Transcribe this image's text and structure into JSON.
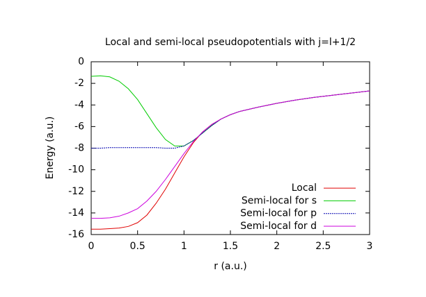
{
  "chart_data": {
    "type": "line",
    "title": "Local and semi-local pseudopotentials with j=l+1/2",
    "x_label": "r (a.u.)",
    "y_label": "Energy (a.u.)",
    "x": [
      0,
      0.1,
      0.2,
      0.3,
      0.4,
      0.5,
      0.6,
      0.7,
      0.8,
      0.9,
      1.0,
      1.1,
      1.2,
      1.3,
      1.4,
      1.5,
      1.6,
      1.8,
      2.0,
      2.2,
      2.4,
      2.6,
      2.8,
      3.0
    ],
    "series": [
      {
        "name": "Local",
        "color": "#e00000",
        "values": [
          -15.5,
          -15.5,
          -15.45,
          -15.4,
          -15.25,
          -14.9,
          -14.2,
          -13.1,
          -11.8,
          -10.3,
          -8.8,
          -7.5,
          -6.5,
          -5.8,
          -5.3,
          -4.9,
          -4.6,
          -4.2,
          -3.85,
          -3.55,
          -3.3,
          -3.1,
          -2.9,
          -2.7
        ]
      },
      {
        "name": "Semi-local for s",
        "color": "#00cc00",
        "values": [
          -1.35,
          -1.3,
          -1.4,
          -1.8,
          -2.5,
          -3.5,
          -4.8,
          -6.1,
          -7.2,
          -7.8,
          -7.8,
          -7.3,
          -6.6,
          -5.9,
          -5.3,
          -4.9,
          -4.6,
          -4.2,
          -3.85,
          -3.55,
          -3.3,
          -3.1,
          -2.9,
          -2.7
        ]
      },
      {
        "name": "Semi-local for p",
        "color": "#0000b0",
        "values": [
          -8,
          -8,
          -7.95,
          -7.95,
          -7.95,
          -7.95,
          -7.95,
          -7.95,
          -8,
          -8,
          -7.8,
          -7.3,
          -6.6,
          -5.9,
          -5.3,
          -4.9,
          -4.6,
          -4.2,
          -3.85,
          -3.55,
          -3.3,
          -3.1,
          -2.9,
          -2.7
        ]
      },
      {
        "name": "Semi-local for d",
        "color": "#cc00dd",
        "values": [
          -14.5,
          -14.5,
          -14.45,
          -14.3,
          -14.0,
          -13.6,
          -12.9,
          -12.0,
          -10.9,
          -9.7,
          -8.5,
          -7.4,
          -6.5,
          -5.8,
          -5.3,
          -4.9,
          -4.6,
          -4.2,
          -3.85,
          -3.55,
          -3.3,
          -3.1,
          -2.9,
          -2.7
        ]
      }
    ],
    "xlim": [
      0,
      3
    ],
    "xticks": [
      0,
      0.5,
      1,
      1.5,
      2,
      2.5,
      3
    ],
    "ylim": [
      -16,
      0
    ],
    "yticks": [
      -16,
      -14,
      -12,
      -10,
      -8,
      -6,
      -4,
      -2,
      0
    ],
    "legend": "bottom-right",
    "grid": false
  }
}
